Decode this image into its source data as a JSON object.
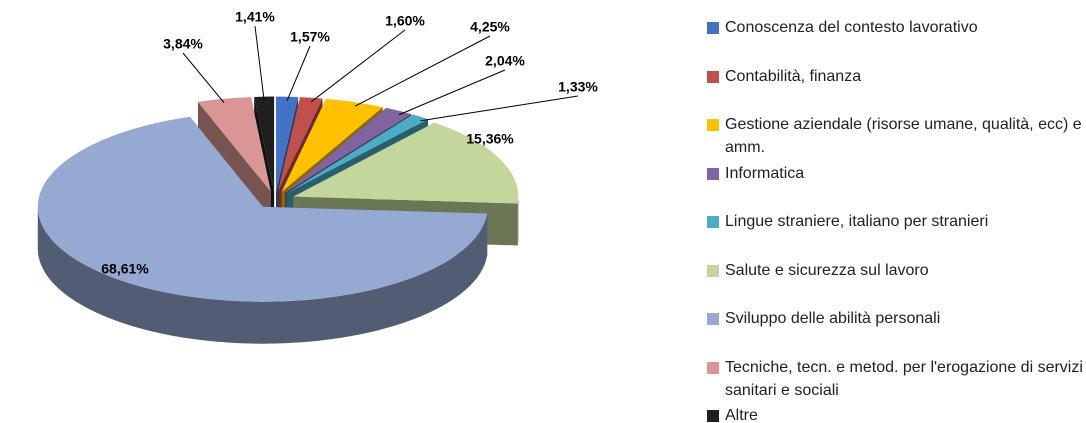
{
  "chart_data": {
    "type": "pie3d",
    "categories": [
      "Conoscenza del contesto lavorativo",
      "Contabilità, finanza",
      "Gestione aziendale (risorse umane, qualità, ecc) e amm.",
      "Informatica",
      "Lingue straniere, italiano per stranieri",
      "Salute e sicurezza sul lavoro",
      "Sviluppo delle abilità personali",
      "Tecniche, tecn. e metod. per l'erogazione di servizi sanitari e sociali",
      "Altre"
    ],
    "values": [
      1.57,
      1.6,
      4.25,
      2.04,
      1.33,
      15.36,
      68.61,
      3.84,
      1.41
    ],
    "value_labels": [
      "1,57%",
      "1,60%",
      "4,25%",
      "2,04%",
      "1,33%",
      "15,36%",
      "68,61%",
      "3,84%",
      "1,41%"
    ],
    "colors": [
      "#4472c4",
      "#c0504d",
      "#ffc000",
      "#8064a2",
      "#4bacc6",
      "#c3d69b",
      "#95a9d2",
      "#d99694",
      "#1f1f1f"
    ],
    "legend": "right"
  }
}
